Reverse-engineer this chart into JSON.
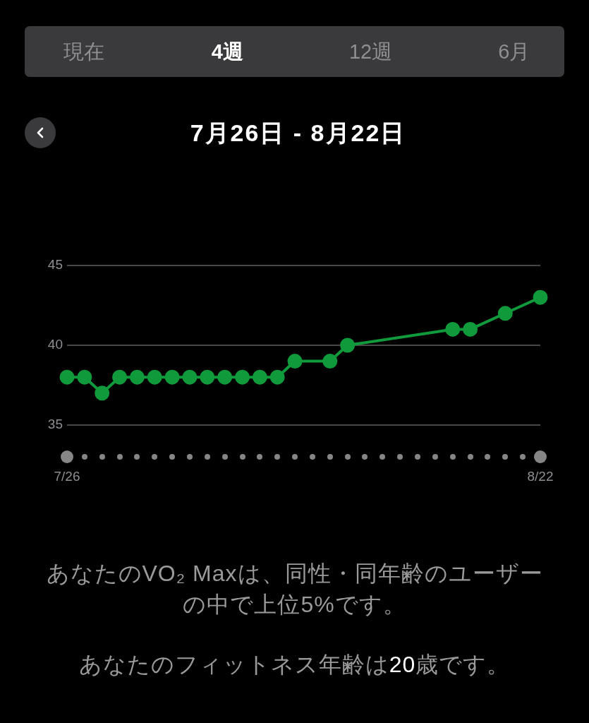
{
  "chart_data": {
    "type": "line",
    "title": "7月26日 - 8月22日",
    "x": [
      "--07-26",
      "--07-27",
      "--07-28",
      "--07-29",
      "--07-30",
      "--07-31",
      "--08-01",
      "--08-02",
      "--08-03",
      "--08-04",
      "--08-05",
      "--08-06",
      "--08-07",
      "--08-08",
      "--08-10",
      "--08-11",
      "--08-17",
      "--08-18",
      "--08-20",
      "--08-22"
    ],
    "values": [
      38,
      38,
      37,
      38,
      38,
      38,
      38,
      38,
      38,
      38,
      38,
      38,
      38,
      39,
      39,
      40,
      41,
      41,
      42,
      43
    ],
    "color": "#109a3c",
    "marker": "circle",
    "grid": "y",
    "xlim": [
      "--07-26",
      "--08-22"
    ],
    "xticks": [
      {
        "value": "--07-26",
        "label": "7/26"
      },
      {
        "value": "--08-22",
        "label": "8/22"
      }
    ],
    "ylim": [
      35,
      45
    ],
    "yticks": [
      35,
      40,
      45
    ],
    "annotations": [
      "現在",
      "4週",
      "12週",
      "6月",
      "あなたのVO₂ Maxは、同性・同年齢のユーザーの中で上位5%です。",
      "あなたのフィットネス年齢は20歳です。"
    ]
  }
}
